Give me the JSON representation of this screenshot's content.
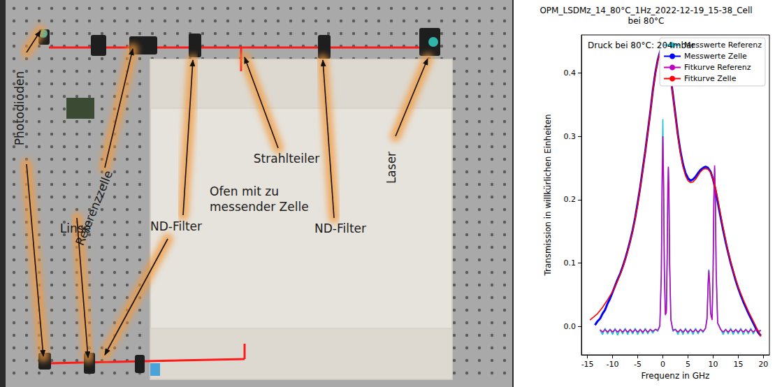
{
  "diagram": {
    "labels": [
      "Photodioden",
      "Referenzzelle",
      "Linse",
      "ND-Filter",
      "ND-Filter",
      "Strahlteiler",
      "Ofen mit zu messender Zelle",
      "Laser"
    ]
  },
  "chart_data": {
    "type": "line",
    "title": "OPM_LSDMz_14_80°C_1Hz_2022-12-19_15-38_Cell",
    "subtitle": "bei 80°C",
    "annotation": "Druck bei 80°C: 204mbar",
    "xlabel": "Frequenz in GHz",
    "ylabel": "Transmission in willkürlichen Einheiten",
    "xlim": [
      -16.2,
      21.2
    ],
    "ylim": [
      -0.045,
      0.46
    ],
    "xticks": [
      -15,
      -10,
      -5,
      0,
      5,
      10,
      15,
      20
    ],
    "yticks": [
      {
        "value": 0,
        "label": "0.0"
      },
      0.1,
      0.2,
      0.3,
      0.4
    ],
    "grid": false,
    "legend": "upper right",
    "series": [
      {
        "name": "Messwerte Referenz",
        "color": "#17c3cf",
        "x": [
          -12.5,
          -12,
          -11.5,
          -11,
          -10.5,
          -10,
          -9.5,
          -9,
          -8.5,
          -8,
          -7.5,
          -7,
          -6.5,
          -6,
          -5.5,
          -5,
          -4.5,
          -4,
          -3.5,
          -3,
          -2.5,
          -2,
          -1.5,
          -1,
          -0.6,
          -0.3,
          -0.15,
          0,
          0.15,
          0.3,
          0.5,
          0.7,
          0.85,
          1,
          1.1,
          1.2,
          1.35,
          1.6,
          2,
          2.5,
          3,
          3.5,
          4,
          4.5,
          5,
          5.5,
          6,
          6.5,
          7,
          7.5,
          8,
          8.5,
          8.8,
          9,
          9.15,
          9.3,
          9.5,
          9.8,
          10,
          10.15,
          10.3,
          10.45,
          10.6,
          10.9,
          11.5,
          12,
          12.5,
          13,
          13.5,
          14,
          14.5,
          15,
          15.5,
          16,
          16.5,
          17,
          17.5,
          18,
          18.5,
          19,
          19.5
        ],
        "values": [
          -0.006,
          -0.013,
          -0.003,
          -0.012,
          -0.004,
          -0.013,
          -0.003,
          -0.014,
          -0.004,
          -0.012,
          -0.003,
          -0.013,
          -0.004,
          -0.012,
          -0.003,
          -0.013,
          -0.004,
          -0.012,
          -0.003,
          -0.012,
          -0.004,
          -0.011,
          -0.004,
          -0.008,
          0.002,
          0.09,
          0.24,
          0.327,
          0.23,
          0.09,
          0.02,
          0.025,
          0.11,
          0.225,
          0.25,
          0.22,
          0.1,
          0.012,
          -0.008,
          -0.004,
          -0.013,
          -0.004,
          -0.013,
          -0.003,
          -0.012,
          -0.004,
          -0.013,
          -0.003,
          -0.012,
          -0.004,
          -0.01,
          -0.002,
          0.015,
          0.07,
          0.09,
          0.07,
          0.022,
          0.012,
          0.09,
          0.2,
          0.25,
          0.2,
          0.09,
          0.006,
          -0.004,
          -0.013,
          -0.004,
          -0.012,
          -0.003,
          -0.013,
          -0.004,
          -0.012,
          -0.003,
          -0.013,
          -0.004,
          -0.012,
          -0.003,
          -0.012,
          -0.004,
          -0.011,
          -0.006
        ]
      },
      {
        "name": "Messwerte Zelle",
        "color": "#0000ff",
        "x": [
          -13.5,
          -13,
          -12.5,
          -12,
          -11.5,
          -11,
          -10.5,
          -10,
          -9.5,
          -9,
          -8.5,
          -8,
          -7.5,
          -7,
          -6.5,
          -6,
          -5.5,
          -5,
          -4.5,
          -4,
          -3.5,
          -3,
          -2.5,
          -2,
          -1.5,
          -1,
          -0.5,
          0,
          0.5,
          1,
          1.5,
          2,
          2.5,
          3,
          3.5,
          4,
          4.5,
          5,
          5.5,
          6,
          6.5,
          7,
          7.5,
          8,
          8.5,
          9,
          9.5,
          10,
          10.5,
          11,
          11.5,
          12,
          12.5,
          13,
          13.5,
          14,
          14.5,
          15,
          15.5,
          16,
          16.5,
          17,
          17.5,
          18,
          18.5,
          19,
          19.5
        ],
        "values": [
          0.002,
          0.008,
          0.012,
          0.02,
          0.026,
          0.036,
          0.044,
          0.054,
          0.064,
          0.074,
          0.083,
          0.094,
          0.106,
          0.12,
          0.135,
          0.152,
          0.172,
          0.195,
          0.22,
          0.248,
          0.276,
          0.307,
          0.338,
          0.372,
          0.4,
          0.421,
          0.435,
          0.44,
          0.434,
          0.42,
          0.396,
          0.366,
          0.334,
          0.302,
          0.276,
          0.256,
          0.242,
          0.234,
          0.23,
          0.232,
          0.236,
          0.242,
          0.247,
          0.25,
          0.252,
          0.25,
          0.244,
          0.232,
          0.214,
          0.193,
          0.172,
          0.152,
          0.133,
          0.116,
          0.1,
          0.086,
          0.072,
          0.06,
          0.049,
          0.039,
          0.03,
          0.021,
          0.013,
          0.005,
          -0.003,
          -0.01,
          -0.015
        ]
      },
      {
        "name": "Fitkurve Referenz",
        "color": "#bf00bf",
        "x": [
          -12.5,
          -12,
          -11.5,
          -11,
          -10.5,
          -10,
          -9.5,
          -9,
          -8.5,
          -8,
          -7.5,
          -7,
          -6.5,
          -6,
          -5.5,
          -5,
          -4.5,
          -4,
          -3.5,
          -3,
          -2.5,
          -2,
          -1.5,
          -1,
          -0.6,
          -0.3,
          -0.15,
          0,
          0.15,
          0.3,
          0.5,
          0.7,
          0.85,
          1,
          1.1,
          1.2,
          1.35,
          1.6,
          2,
          2.5,
          3,
          3.5,
          4,
          4.5,
          5,
          5.5,
          6,
          6.5,
          7,
          7.5,
          8,
          8.5,
          8.8,
          9,
          9.15,
          9.3,
          9.5,
          9.8,
          10,
          10.15,
          10.3,
          10.45,
          10.6,
          10.9,
          11.5,
          12,
          12.5,
          13,
          13.5,
          14,
          14.5,
          15,
          15.5,
          16,
          16.5,
          17,
          17.5,
          18,
          18.5,
          19,
          19.5
        ],
        "values": [
          -0.005,
          -0.009,
          -0.005,
          -0.009,
          -0.005,
          -0.009,
          -0.005,
          -0.009,
          -0.005,
          -0.009,
          -0.005,
          -0.009,
          -0.005,
          -0.009,
          -0.005,
          -0.009,
          -0.005,
          -0.009,
          -0.005,
          -0.009,
          -0.005,
          -0.008,
          -0.005,
          -0.006,
          0.0,
          0.08,
          0.22,
          0.3,
          0.22,
          0.085,
          0.018,
          0.022,
          0.1,
          0.22,
          0.252,
          0.22,
          0.1,
          0.01,
          -0.006,
          -0.005,
          -0.009,
          -0.005,
          -0.009,
          -0.005,
          -0.009,
          -0.005,
          -0.009,
          -0.005,
          -0.009,
          -0.005,
          -0.008,
          -0.003,
          0.012,
          0.065,
          0.088,
          0.068,
          0.02,
          0.01,
          0.09,
          0.2,
          0.254,
          0.2,
          0.09,
          0.005,
          -0.005,
          -0.009,
          -0.005,
          -0.009,
          -0.005,
          -0.009,
          -0.005,
          -0.009,
          -0.005,
          -0.009,
          -0.005,
          -0.009,
          -0.005,
          -0.009,
          -0.005,
          -0.008,
          -0.006
        ]
      },
      {
        "name": "Fitkurve Zelle",
        "color": "#ff0000",
        "x": [
          -14.5,
          -13,
          -12,
          -11,
          -10,
          -9,
          -8,
          -7,
          -6,
          -5,
          -4,
          -3,
          -2,
          -1.5,
          -1,
          -0.5,
          0,
          0.5,
          1,
          1.5,
          2,
          2.5,
          3,
          3.5,
          4,
          4.5,
          5,
          5.5,
          6,
          6.5,
          7,
          7.5,
          8,
          8.5,
          9,
          9.5,
          10,
          10.5,
          11,
          11.5,
          12,
          13,
          14,
          15,
          16,
          17,
          18,
          19,
          19.5
        ],
        "values": [
          0.01,
          0.02,
          0.03,
          0.042,
          0.055,
          0.072,
          0.092,
          0.118,
          0.15,
          0.192,
          0.245,
          0.305,
          0.37,
          0.398,
          0.42,
          0.433,
          0.437,
          0.432,
          0.418,
          0.395,
          0.365,
          0.333,
          0.3,
          0.273,
          0.252,
          0.238,
          0.23,
          0.227,
          0.228,
          0.232,
          0.238,
          0.244,
          0.248,
          0.249,
          0.248,
          0.243,
          0.233,
          0.218,
          0.198,
          0.176,
          0.155,
          0.117,
          0.087,
          0.062,
          0.042,
          0.024,
          0.008,
          -0.008,
          -0.016
        ]
      }
    ]
  }
}
